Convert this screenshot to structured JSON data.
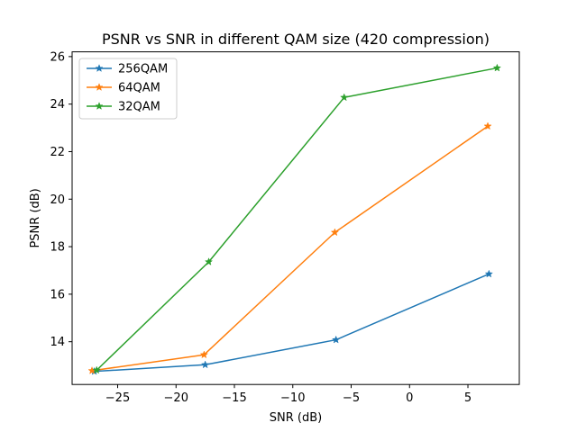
{
  "chart_data": {
    "type": "line",
    "title": "PSNR vs SNR in different QAM size (420 compression)",
    "xlabel": "SNR (dB)",
    "ylabel": "PSNR (dB)",
    "xlim": [
      -28.9,
      9.4
    ],
    "ylim": [
      12.2,
      26.2
    ],
    "xticks": [
      -25,
      -20,
      -15,
      -10,
      -5,
      0,
      5
    ],
    "yticks": [
      14,
      16,
      18,
      20,
      22,
      24,
      26
    ],
    "xtick_labels": [
      "−25",
      "−20",
      "−15",
      "−10",
      "−5",
      "0",
      "5"
    ],
    "ytick_labels": [
      "14",
      "16",
      "18",
      "20",
      "22",
      "24",
      "26"
    ],
    "grid": false,
    "legend": "top-left",
    "marker": "star",
    "series": [
      {
        "name": "256QAM",
        "color": "#1f77b4",
        "x": [
          -27.0,
          -17.5,
          -6.3,
          6.8
        ],
        "y": [
          12.75,
          13.03,
          14.08,
          16.85
        ]
      },
      {
        "name": "64QAM",
        "color": "#ff7f0e",
        "x": [
          -27.2,
          -17.6,
          -6.4,
          6.7
        ],
        "y": [
          12.78,
          13.45,
          18.6,
          23.07
        ]
      },
      {
        "name": "32QAM",
        "color": "#2ca02c",
        "x": [
          -26.8,
          -17.2,
          -5.6,
          7.5
        ],
        "y": [
          12.8,
          17.36,
          24.28,
          25.52
        ]
      }
    ]
  }
}
